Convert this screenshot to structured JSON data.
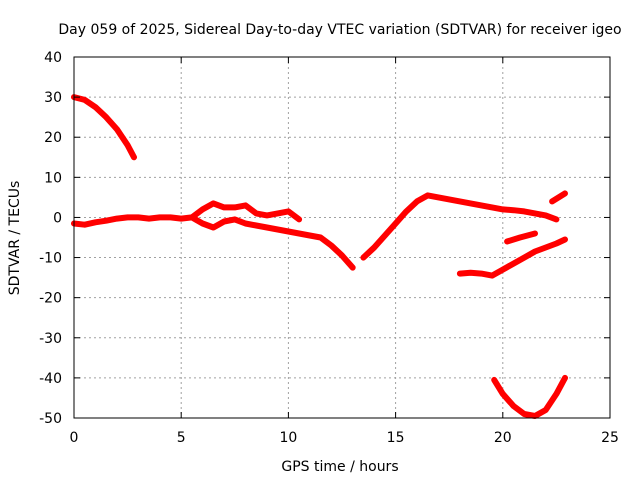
{
  "chart_data": {
    "type": "scatter",
    "title": "Day 059 of 2025, Sidereal Day-to-day VTEC variation (SDTVAR) for receiver igeo",
    "xlabel": "GPS time / hours",
    "ylabel": "SDTVAR / TECUs",
    "xlim": [
      0,
      25
    ],
    "ylim": [
      -50,
      40
    ],
    "xticks": [
      0,
      5,
      10,
      15,
      20,
      25
    ],
    "yticks": [
      -50,
      -40,
      -30,
      -20,
      -10,
      0,
      10,
      20,
      30,
      40
    ],
    "grid": true,
    "color": "#ff0000",
    "series": [
      {
        "name": "segment-1",
        "x": [
          0.0,
          0.5,
          1.0,
          1.5,
          2.0,
          2.5,
          2.8
        ],
        "y": [
          30,
          29.3,
          27.5,
          25,
          22,
          18,
          15
        ]
      },
      {
        "name": "segment-2",
        "x": [
          0.0,
          0.5,
          1.0,
          1.5,
          2.0,
          2.5,
          3.0,
          3.5,
          4.0,
          4.5,
          5.0,
          5.5,
          6.0,
          6.5,
          7.0,
          7.5,
          8.0,
          8.5,
          9.0,
          9.5,
          10.0,
          10.5,
          11.0,
          11.5,
          12.0,
          12.5,
          13.0
        ],
        "y": [
          -1.5,
          -1.8,
          -1.2,
          -0.8,
          -0.3,
          0,
          0,
          -0.3,
          0,
          0,
          -0.3,
          0,
          -1.5,
          -2.5,
          -1,
          -0.5,
          -1.5,
          -2,
          -2.5,
          -3,
          -3.5,
          -4,
          -4.5,
          -5,
          -7,
          -9.5,
          -12.5
        ]
      },
      {
        "name": "segment-3",
        "x": [
          5.5,
          6.0,
          6.5,
          7.0,
          7.5,
          8.0,
          8.5,
          9.0,
          9.5,
          10.0,
          10.5
        ],
        "y": [
          0,
          2,
          3.5,
          2.5,
          2.5,
          3,
          1,
          0.5,
          1,
          1.5,
          -0.5
        ]
      },
      {
        "name": "segment-4",
        "x": [
          13.5,
          14.0,
          14.5,
          15.0,
          15.5,
          16.0,
          16.5,
          17.0,
          17.5,
          18.0,
          18.5,
          19.0,
          19.5,
          20.0,
          20.5,
          21.0,
          21.5,
          22.0,
          22.5
        ],
        "y": [
          -10,
          -7.5,
          -4.5,
          -1.5,
          1.5,
          4,
          5.5,
          5,
          4.5,
          4,
          3.5,
          3,
          2.5,
          2,
          1.8,
          1.5,
          1,
          0.5,
          -0.5
        ]
      },
      {
        "name": "segment-5",
        "x": [
          20.2,
          20.8,
          21.5
        ],
        "y": [
          -6,
          -5,
          -4
        ]
      },
      {
        "name": "segment-6",
        "x": [
          22.3,
          22.9
        ],
        "y": [
          4,
          6
        ]
      },
      {
        "name": "segment-7",
        "x": [
          18.0,
          18.5,
          19.0,
          19.5,
          20.0,
          20.5,
          21.0,
          21.5,
          22.0,
          22.5,
          22.9
        ],
        "y": [
          -14,
          -13.8,
          -14,
          -14.5,
          -13,
          -11.5,
          -10,
          -8.5,
          -7.5,
          -6.5,
          -5.5
        ]
      },
      {
        "name": "segment-8",
        "x": [
          19.6,
          20.0,
          20.5,
          21.0,
          21.5,
          22.0,
          22.5,
          22.9
        ],
        "y": [
          -40.5,
          -44,
          -47,
          -49,
          -49.5,
          -48,
          -44,
          -40
        ]
      }
    ]
  }
}
